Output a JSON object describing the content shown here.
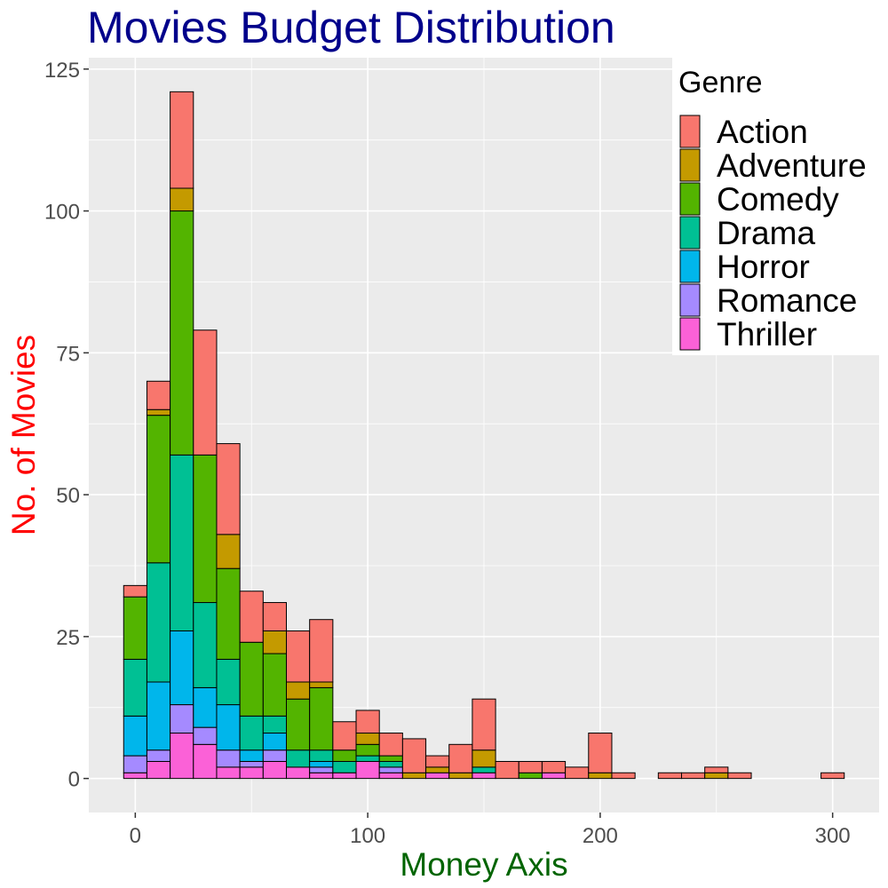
{
  "chart_data": {
    "type": "bar",
    "title": "Movies Budget Distribution",
    "xlabel": "Money Axis",
    "ylabel": "No. of Movies",
    "xlim": [
      -20,
      320
    ],
    "ylim": [
      -6,
      127
    ],
    "x_ticks": [
      0,
      100,
      200,
      300
    ],
    "y_ticks": [
      0,
      25,
      50,
      75,
      100,
      125
    ],
    "bin_width": 10,
    "bin_centers": [
      0,
      10,
      20,
      30,
      40,
      50,
      60,
      70,
      80,
      90,
      100,
      110,
      120,
      130,
      140,
      150,
      160,
      170,
      180,
      190,
      200,
      210,
      220,
      230,
      240,
      250,
      260,
      270,
      280,
      290,
      300
    ],
    "stack_order": [
      "Thriller",
      "Romance",
      "Horror",
      "Drama",
      "Comedy",
      "Adventure",
      "Action"
    ],
    "series": [
      {
        "name": "Action",
        "color": "#F8766D",
        "values": [
          2,
          5,
          17,
          22,
          16,
          9,
          5,
          9,
          11,
          5,
          4,
          4,
          6,
          2,
          5,
          9,
          3,
          2,
          2,
          2,
          7,
          1,
          0,
          1,
          1,
          1,
          1,
          0,
          0,
          0,
          1
        ]
      },
      {
        "name": "Adventure",
        "color": "#C49A00",
        "values": [
          0,
          1,
          4,
          0,
          6,
          0,
          4,
          3,
          1,
          0,
          2,
          0,
          1,
          1,
          1,
          3,
          0,
          0,
          0,
          0,
          1,
          0,
          0,
          0,
          0,
          1,
          0,
          0,
          0,
          0,
          0
        ]
      },
      {
        "name": "Comedy",
        "color": "#53B400",
        "values": [
          11,
          26,
          43,
          26,
          16,
          13,
          11,
          9,
          11,
          2,
          2,
          1,
          0,
          0,
          0,
          0,
          0,
          1,
          0,
          0,
          0,
          0,
          0,
          0,
          0,
          0,
          0,
          0,
          0,
          0,
          0
        ]
      },
      {
        "name": "Drama",
        "color": "#00C094",
        "values": [
          10,
          21,
          31,
          15,
          8,
          6,
          3,
          3,
          2,
          2,
          1,
          1,
          0,
          0,
          0,
          1,
          0,
          0,
          0,
          0,
          0,
          0,
          0,
          0,
          0,
          0,
          0,
          0,
          0,
          0,
          0
        ]
      },
      {
        "name": "Horror",
        "color": "#00B6EB",
        "values": [
          7,
          12,
          13,
          7,
          8,
          2,
          3,
          0,
          1,
          0,
          0,
          0,
          0,
          0,
          0,
          0,
          0,
          0,
          0,
          0,
          0,
          0,
          0,
          0,
          0,
          0,
          0,
          0,
          0,
          0,
          0
        ]
      },
      {
        "name": "Romance",
        "color": "#A58AFF",
        "values": [
          3,
          2,
          5,
          3,
          3,
          1,
          2,
          0,
          1,
          0,
          0,
          1,
          0,
          0,
          0,
          0,
          0,
          0,
          0,
          0,
          0,
          0,
          0,
          0,
          0,
          0,
          0,
          0,
          0,
          0,
          0
        ]
      },
      {
        "name": "Thriller",
        "color": "#FB61D7",
        "values": [
          1,
          3,
          8,
          6,
          2,
          2,
          3,
          2,
          1,
          1,
          3,
          1,
          0,
          1,
          0,
          1,
          0,
          0,
          1,
          0,
          0,
          0,
          0,
          0,
          0,
          0,
          0,
          0,
          0,
          0,
          0
        ]
      }
    ],
    "legend_title": "Genre",
    "legend_position": "top-right",
    "grid": true,
    "colors": {
      "title": "#00008B",
      "xlabel": "#006400",
      "ylabel": "#FF0000",
      "panel_background": "#EBEBEB",
      "grid": "#FFFFFF",
      "bar_outline": "#000000"
    }
  }
}
